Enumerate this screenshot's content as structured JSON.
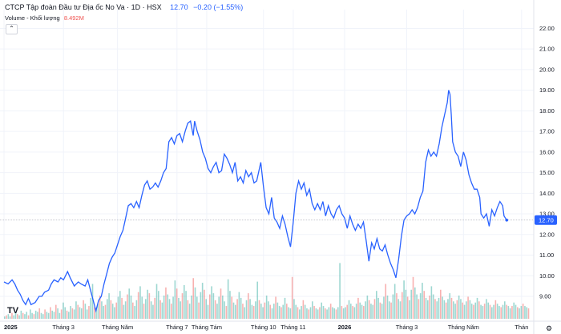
{
  "legend": {
    "title": "CTCP Tập đoàn Đầu tư Địa ốc No Va · 1D · HSX",
    "price": "12.70",
    "change": "−0.20 (−1.55%)",
    "volume_label": "Volume - Khối lượng",
    "volume_value": "8.492M"
  },
  "logo_text": "TV",
  "collapse_icon": "chevron-up-icon",
  "settings_icon": "gear-icon",
  "colors": {
    "line": "#2962ff",
    "vol_up": "#26a69a",
    "vol_down": "#ef5350",
    "last_label_bg": "#2962ff"
  },
  "chart_data": {
    "type": "line",
    "title": "",
    "y_axis": {
      "ticks": [
        "9.00",
        "10.00",
        "11.00",
        "12.00",
        "13.00",
        "14.00",
        "15.00",
        "16.00",
        "17.00",
        "18.00",
        "19.00",
        "20.00",
        "21.00",
        "22.00"
      ],
      "range": [
        8.3,
        22.6
      ],
      "position": "right",
      "last_value_label": "12.70"
    },
    "x_axis": {
      "ticks": [
        {
          "label": "2025",
          "bold": true,
          "x": 0
        },
        {
          "label": "Tháng 3",
          "bold": false,
          "x": 44
        },
        {
          "label": "Tháng Năm",
          "bold": false,
          "x": 84
        },
        {
          "label": "Tháng 7",
          "bold": false,
          "x": 128
        },
        {
          "label": "Tháng Tám",
          "bold": false,
          "x": 150
        },
        {
          "label": "Tháng 10",
          "bold": false,
          "x": 192
        },
        {
          "label": "Tháng 11",
          "bold": false,
          "x": 214
        },
        {
          "label": "2026",
          "bold": true,
          "x": 252
        },
        {
          "label": "Tháng 3",
          "bold": false,
          "x": 298
        },
        {
          "label": "Tháng Năm",
          "bold": false,
          "x": 340
        },
        {
          "label": "Thán",
          "bold": false,
          "x": 383
        }
      ],
      "range": [
        0,
        392
      ]
    },
    "series": [
      {
        "price": [
          [
            0,
            9.7
          ],
          [
            3,
            9.6
          ],
          [
            6,
            9.8
          ],
          [
            8,
            9.6
          ],
          [
            10,
            9.3
          ],
          [
            12,
            9.1
          ],
          [
            14,
            8.8
          ],
          [
            16,
            8.6
          ],
          [
            18,
            8.9
          ],
          [
            20,
            8.6
          ],
          [
            23,
            8.7
          ],
          [
            26,
            9.0
          ],
          [
            28,
            9.0
          ],
          [
            30,
            9.2
          ],
          [
            33,
            9.3
          ],
          [
            35,
            9.6
          ],
          [
            37,
            9.8
          ],
          [
            40,
            9.7
          ],
          [
            42,
            9.9
          ],
          [
            44,
            9.8
          ],
          [
            47,
            10.2
          ],
          [
            49,
            9.9
          ],
          [
            52,
            9.5
          ],
          [
            55,
            9.7
          ],
          [
            57,
            9.6
          ],
          [
            60,
            9.5
          ],
          [
            62,
            9.8
          ],
          [
            64,
            9.3
          ],
          [
            66,
            8.8
          ],
          [
            68,
            8.3
          ],
          [
            70,
            8.8
          ],
          [
            72,
            9.0
          ],
          [
            74,
            9.6
          ],
          [
            76,
            10.1
          ],
          [
            78,
            10.6
          ],
          [
            80,
            10.9
          ],
          [
            82,
            11.1
          ],
          [
            84,
            11.5
          ],
          [
            86,
            11.9
          ],
          [
            88,
            12.2
          ],
          [
            90,
            12.8
          ],
          [
            92,
            13.4
          ],
          [
            94,
            13.5
          ],
          [
            96,
            13.3
          ],
          [
            98,
            13.6
          ],
          [
            100,
            13.3
          ],
          [
            102,
            13.9
          ],
          [
            104,
            14.4
          ],
          [
            106,
            14.6
          ],
          [
            108,
            14.2
          ],
          [
            110,
            14.3
          ],
          [
            112,
            14.5
          ],
          [
            114,
            14.3
          ],
          [
            116,
            14.6
          ],
          [
            118,
            15.0
          ],
          [
            120,
            15.2
          ],
          [
            122,
            16.5
          ],
          [
            124,
            16.7
          ],
          [
            126,
            16.4
          ],
          [
            128,
            16.8
          ],
          [
            130,
            16.9
          ],
          [
            132,
            16.5
          ],
          [
            134,
            17.0
          ],
          [
            136,
            17.4
          ],
          [
            138,
            17.5
          ],
          [
            140,
            16.8
          ],
          [
            141,
            17.5
          ],
          [
            143,
            17.0
          ],
          [
            145,
            16.6
          ],
          [
            147,
            16.0
          ],
          [
            149,
            15.7
          ],
          [
            151,
            15.2
          ],
          [
            153,
            15.0
          ],
          [
            155,
            15.3
          ],
          [
            157,
            15.5
          ],
          [
            159,
            15.0
          ],
          [
            161,
            15.1
          ],
          [
            163,
            15.9
          ],
          [
            165,
            15.7
          ],
          [
            167,
            15.4
          ],
          [
            169,
            15.0
          ],
          [
            171,
            15.5
          ],
          [
            173,
            14.6
          ],
          [
            175,
            14.8
          ],
          [
            177,
            14.5
          ],
          [
            179,
            15.1
          ],
          [
            181,
            14.8
          ],
          [
            183,
            15.0
          ],
          [
            185,
            14.5
          ],
          [
            187,
            14.6
          ],
          [
            189,
            15.2
          ],
          [
            190,
            15.5
          ],
          [
            192,
            14.3
          ],
          [
            194,
            13.3
          ],
          [
            196,
            13.0
          ],
          [
            198,
            13.8
          ],
          [
            200,
            12.8
          ],
          [
            202,
            12.6
          ],
          [
            204,
            12.3
          ],
          [
            206,
            12.9
          ],
          [
            208,
            12.5
          ],
          [
            210,
            11.9
          ],
          [
            212,
            11.4
          ],
          [
            214,
            12.6
          ],
          [
            216,
            14.0
          ],
          [
            218,
            14.6
          ],
          [
            220,
            14.2
          ],
          [
            222,
            14.5
          ],
          [
            224,
            13.9
          ],
          [
            226,
            14.2
          ],
          [
            228,
            13.5
          ],
          [
            230,
            13.2
          ],
          [
            232,
            13.5
          ],
          [
            234,
            13.2
          ],
          [
            236,
            13.6
          ],
          [
            238,
            12.9
          ],
          [
            240,
            13.4
          ],
          [
            242,
            13.0
          ],
          [
            244,
            12.8
          ],
          [
            246,
            13.2
          ],
          [
            248,
            13.4
          ],
          [
            250,
            13.0
          ],
          [
            252,
            12.8
          ],
          [
            254,
            12.3
          ],
          [
            256,
            12.9
          ],
          [
            258,
            12.5
          ],
          [
            260,
            12.2
          ],
          [
            262,
            12.5
          ],
          [
            264,
            12.3
          ],
          [
            266,
            12.6
          ],
          [
            268,
            11.7
          ],
          [
            270,
            10.7
          ],
          [
            272,
            11.6
          ],
          [
            274,
            11.3
          ],
          [
            276,
            11.8
          ],
          [
            278,
            11.3
          ],
          [
            280,
            11.2
          ],
          [
            282,
            11.5
          ],
          [
            284,
            11.0
          ],
          [
            286,
            10.6
          ],
          [
            288,
            10.3
          ],
          [
            290,
            9.9
          ],
          [
            292,
            10.8
          ],
          [
            294,
            11.9
          ],
          [
            296,
            12.7
          ],
          [
            298,
            12.9
          ],
          [
            300,
            13.0
          ],
          [
            302,
            13.2
          ],
          [
            304,
            13.0
          ],
          [
            306,
            13.3
          ],
          [
            308,
            13.8
          ],
          [
            310,
            14.1
          ],
          [
            312,
            15.5
          ],
          [
            314,
            16.1
          ],
          [
            316,
            15.8
          ],
          [
            318,
            16.0
          ],
          [
            320,
            15.8
          ],
          [
            322,
            16.4
          ],
          [
            324,
            17.2
          ],
          [
            326,
            17.8
          ],
          [
            328,
            18.4
          ],
          [
            329,
            19.0
          ],
          [
            330,
            18.8
          ],
          [
            331,
            17.8
          ],
          [
            332,
            16.5
          ],
          [
            334,
            16.0
          ],
          [
            336,
            15.8
          ],
          [
            338,
            15.3
          ],
          [
            340,
            16.0
          ],
          [
            342,
            15.6
          ],
          [
            344,
            14.9
          ],
          [
            346,
            14.5
          ],
          [
            348,
            14.2
          ],
          [
            350,
            14.2
          ],
          [
            352,
            13.8
          ],
          [
            353,
            13.0
          ],
          [
            355,
            12.8
          ],
          [
            357,
            13.0
          ],
          [
            359,
            12.4
          ],
          [
            361,
            13.2
          ],
          [
            363,
            12.9
          ],
          [
            365,
            13.3
          ],
          [
            367,
            13.6
          ],
          [
            369,
            13.4
          ],
          [
            370,
            12.9
          ],
          [
            372,
            12.7
          ]
        ]
      }
    ],
    "volume_heights": [
      2,
      3,
      4,
      2,
      5,
      3,
      6,
      4,
      3,
      7,
      5,
      4,
      6,
      3,
      8,
      5,
      4,
      7,
      6,
      9,
      5,
      4,
      8,
      6,
      5,
      10,
      7,
      6,
      12,
      9,
      5,
      8,
      14,
      10,
      7,
      6,
      11,
      9,
      8,
      15,
      12,
      10,
      9,
      16,
      13,
      8,
      11,
      18,
      14,
      10,
      9,
      13,
      20,
      15,
      11,
      12,
      17,
      22,
      16,
      13,
      10,
      14,
      19,
      24,
      18,
      12,
      15,
      21,
      26,
      20,
      14,
      11,
      16,
      23,
      28,
      19,
      13,
      17,
      25,
      22,
      15,
      12,
      18,
      30,
      24,
      16,
      14,
      20,
      27,
      21,
      17,
      13,
      19,
      33,
      26,
      18,
      15,
      22,
      29,
      24,
      16,
      13,
      20,
      35,
      27,
      19,
      14,
      23,
      31,
      25,
      17,
      12,
      21,
      28,
      22,
      16,
      13,
      19,
      26,
      20,
      15,
      11,
      18,
      24,
      19,
      14,
      12,
      17,
      23,
      18,
      13,
      10,
      16,
      22,
      17,
      12,
      11,
      15,
      21,
      16,
      13,
      10,
      14,
      20,
      15,
      12,
      9,
      13,
      19,
      14,
      11,
      10,
      12,
      18,
      13,
      10,
      9,
      11,
      17,
      12,
      10,
      8,
      11,
      16,
      12,
      9,
      8,
      10,
      15,
      11,
      9,
      8,
      10,
      14,
      11,
      9,
      8,
      10,
      13,
      10,
      9,
      8,
      10,
      14,
      11,
      9,
      10,
      12,
      16,
      13,
      11,
      10,
      13,
      18,
      14,
      12,
      11,
      15,
      20,
      16,
      13,
      12,
      17,
      24,
      18,
      14,
      13,
      19,
      26,
      20,
      15,
      14,
      21,
      30,
      22,
      17,
      15,
      23,
      33,
      25,
      19,
      16,
      25,
      36,
      27,
      21,
      17,
      22,
      31,
      24,
      18,
      16,
      20,
      28,
      21,
      17,
      15,
      18,
      25,
      19,
      16,
      14,
      17,
      22,
      18,
      15,
      13,
      16,
      20,
      17,
      14,
      12,
      15,
      19,
      16,
      13,
      12,
      14,
      18,
      15,
      12,
      11,
      13,
      17,
      14,
      12,
      10,
      12,
      16,
      13,
      11,
      10,
      12,
      15,
      12,
      11,
      9,
      11,
      14,
      12,
      10,
      9,
      11,
      13,
      11,
      10,
      9
    ],
    "volume_spikes": [
      [
        48,
        30
      ],
      [
        122,
        34
      ],
      [
        138,
        32
      ],
      [
        157,
        36
      ],
      [
        183,
        48
      ],
      [
        208,
        30
      ],
      [
        290,
        36
      ],
      [
        320,
        52
      ],
      [
        332,
        44
      ],
      [
        345,
        34
      ],
      [
        360,
        40
      ]
    ]
  }
}
